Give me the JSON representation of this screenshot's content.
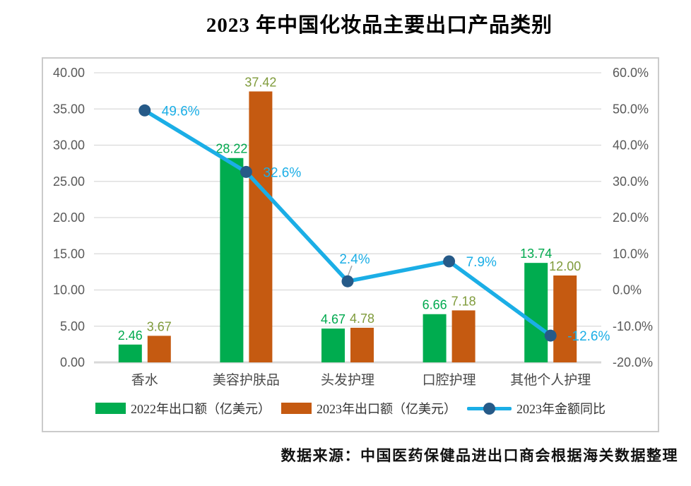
{
  "header": {
    "title": "2023 年中国化妆品主要出口产品类别"
  },
  "source_note": "数据来源：中国医药保健品进出口商会根据海关数据整理",
  "colors": {
    "bar_2022": "#00AC4F",
    "bar_2023": "#C55A11",
    "line": "#1BAEE6",
    "line_marker": "#265A88",
    "pct_label": "#1BAEE6",
    "bar_label_2022": "#00A94E",
    "bar_label_2023": "#7F9B3B",
    "gridline": "#D9D9D9",
    "axis_text": "#595959",
    "leader_line": "#A6A6A6"
  },
  "chart_data": {
    "type": "bar+line",
    "title": "2023 年中国化妆品主要出口产品类别",
    "categories": [
      "香水",
      "美容护肤品",
      "头发护理",
      "口腔护理",
      "其他个人护理"
    ],
    "series": [
      {
        "name": "2022年出口额（亿美元）",
        "type": "bar",
        "axis": "left",
        "color": "#00AC4F",
        "label_color": "#00A94E",
        "values": [
          2.46,
          28.22,
          4.67,
          6.66,
          13.74
        ],
        "labels": [
          "2.46",
          "28.22",
          "4.67",
          "6.66",
          "13.74"
        ]
      },
      {
        "name": "2023年出口额（亿美元）",
        "type": "bar",
        "axis": "left",
        "color": "#C55A11",
        "label_color": "#7F9B3B",
        "values": [
          3.67,
          37.42,
          4.78,
          7.18,
          12.0
        ],
        "labels": [
          "3.67",
          "37.42",
          "4.78",
          "7.18",
          "12.00"
        ]
      },
      {
        "name": "2023年金额同比",
        "type": "line",
        "axis": "right",
        "color": "#1BAEE6",
        "marker_color": "#265A88",
        "label_color": "#1BAEE6",
        "values": [
          49.6,
          32.6,
          2.4,
          7.9,
          -12.6
        ],
        "labels": [
          "49.6%",
          "32.6%",
          "2.4%",
          "7.9%",
          "-12.6%"
        ]
      }
    ],
    "left_axis": {
      "min": 0,
      "max": 40,
      "step": 5,
      "tick_labels": [
        "40.00",
        "35.00",
        "30.00",
        "25.00",
        "20.00",
        "15.00",
        "10.00",
        "5.00",
        "0.00"
      ]
    },
    "right_axis": {
      "min": -20,
      "max": 60,
      "step": 10,
      "tick_labels": [
        "60.0%",
        "50.0%",
        "40.0%",
        "30.0%",
        "20.0%",
        "10.0%",
        "0.0%",
        "-10.0%",
        "-20.0%"
      ]
    },
    "grid": true,
    "legend_position": "bottom"
  }
}
